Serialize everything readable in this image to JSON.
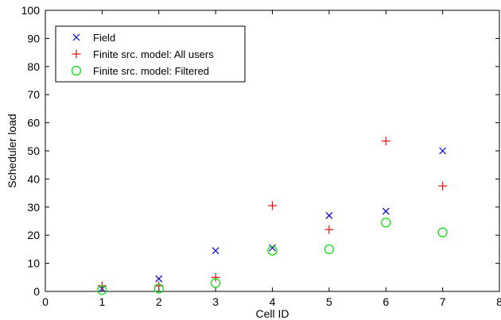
{
  "chart_data": {
    "type": "scatter",
    "title": "",
    "xlabel": "Cell ID",
    "ylabel": "Scheduler load",
    "xlim": [
      0,
      8
    ],
    "ylim": [
      0,
      100
    ],
    "xticks": [
      "0",
      "1",
      "2",
      "3",
      "4",
      "5",
      "6",
      "7",
      "8"
    ],
    "yticks": [
      "0",
      "10",
      "20",
      "30",
      "40",
      "50",
      "60",
      "70",
      "80",
      "90",
      "100"
    ],
    "grid": false,
    "legend_position": "top-left",
    "series": [
      {
        "name": "Field",
        "marker": "x",
        "color": "#0000cc",
        "x": [
          1,
          2,
          3,
          4,
          5,
          6,
          7
        ],
        "y": [
          1,
          4.5,
          14.5,
          15.5,
          27,
          28.5,
          50
        ]
      },
      {
        "name": "Finite src. model: All users",
        "marker": "+",
        "color": "#e01010",
        "x": [
          1,
          2,
          3,
          4,
          5,
          6,
          7
        ],
        "y": [
          2,
          2,
          5,
          30.5,
          22,
          53.5,
          37.5
        ]
      },
      {
        "name": "Finite src. model: Filtered",
        "marker": "o",
        "color": "#00dd00",
        "x": [
          1,
          2,
          3,
          4,
          5,
          6,
          7
        ],
        "y": [
          0.5,
          1,
          3,
          14.5,
          15,
          24.5,
          21
        ]
      }
    ]
  }
}
